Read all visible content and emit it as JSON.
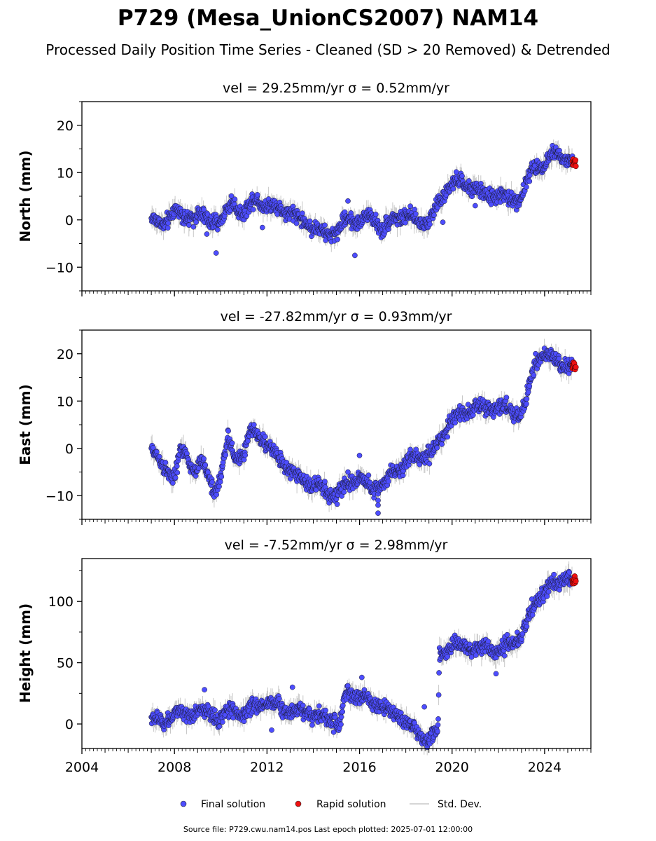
{
  "title": "P729 (Mesa_UnionCS2007) NAM14",
  "subtitle": "Processed Daily Position Time Series - Cleaned (SD > 20 Removed) & Detrended",
  "source_note": "Source file: P729.cwu.nam14.pos  Last epoch plotted: 2025-07-01 12:00:00",
  "legend": {
    "final": "Final solution",
    "rapid": "Rapid solution",
    "std": "Std. Dev."
  },
  "colors": {
    "final": "#4d4dff",
    "rapid": "#ee1111",
    "std": "#b5b5b5"
  },
  "chart_data": [
    {
      "type": "scatter",
      "title": "vel = 29.25mm/yr   σ = 0.52mm/yr",
      "ylabel": "North (mm)",
      "xlim": [
        2004,
        2026
      ],
      "ylim": [
        -15,
        25
      ],
      "xticks": [
        2004,
        2008,
        2012,
        2016,
        2020,
        2024
      ],
      "yticks": [
        -10,
        0,
        10,
        20
      ],
      "final_start": 2007.0,
      "final_end": 2025.2,
      "rapid_start": 2025.2,
      "rapid_end": 2025.5,
      "trend": [
        [
          2007.0,
          0.5
        ],
        [
          2007.5,
          -1.5
        ],
        [
          2008.0,
          2.5
        ],
        [
          2008.5,
          0.0
        ],
        [
          2009.0,
          1.5
        ],
        [
          2009.5,
          -0.5
        ],
        [
          2010.0,
          0.0
        ],
        [
          2010.5,
          3.5
        ],
        [
          2011.0,
          1.5
        ],
        [
          2011.5,
          4.5
        ],
        [
          2012.0,
          3.0
        ],
        [
          2012.5,
          2.5
        ],
        [
          2013.0,
          1.5
        ],
        [
          2013.5,
          0.0
        ],
        [
          2014.0,
          -1.5
        ],
        [
          2014.5,
          -3.0
        ],
        [
          2015.0,
          -2.5
        ],
        [
          2015.5,
          0.5
        ],
        [
          2016.0,
          -0.5
        ],
        [
          2016.5,
          1.0
        ],
        [
          2017.0,
          -2.0
        ],
        [
          2017.5,
          0.5
        ],
        [
          2018.0,
          1.0
        ],
        [
          2018.5,
          -0.5
        ],
        [
          2019.0,
          0.0
        ],
        [
          2019.5,
          4.0
        ],
        [
          2020.0,
          8.0
        ],
        [
          2020.5,
          7.5
        ],
        [
          2021.0,
          6.5
        ],
        [
          2021.5,
          5.0
        ],
        [
          2022.0,
          5.5
        ],
        [
          2022.5,
          4.0
        ],
        [
          2023.0,
          5.0
        ],
        [
          2023.5,
          11.0
        ],
        [
          2024.0,
          12.0
        ],
        [
          2024.5,
          14.5
        ],
        [
          2025.0,
          12.5
        ],
        [
          2025.5,
          12.0
        ]
      ],
      "outliers": [
        [
          2009.8,
          -7.0
        ],
        [
          2015.8,
          -7.5
        ],
        [
          2011.8,
          -1.6
        ],
        [
          2019.6,
          -0.5
        ],
        [
          2021.0,
          3.0
        ],
        [
          2009.4,
          -3.0
        ],
        [
          2015.5,
          4.0
        ]
      ]
    },
    {
      "type": "scatter",
      "title": "vel = -27.82mm/yr   σ = 0.93mm/yr",
      "ylabel": "East (mm)",
      "xlim": [
        2004,
        2026
      ],
      "ylim": [
        -15,
        25
      ],
      "xticks": [
        2004,
        2008,
        2012,
        2016,
        2020,
        2024
      ],
      "yticks": [
        -10,
        0,
        10,
        20
      ],
      "final_start": 2007.0,
      "final_end": 2025.2,
      "rapid_start": 2025.2,
      "rapid_end": 2025.5,
      "trend": [
        [
          2007.0,
          0.0
        ],
        [
          2007.5,
          -4.0
        ],
        [
          2008.0,
          -6.0
        ],
        [
          2008.3,
          0.0
        ],
        [
          2008.8,
          -4.5
        ],
        [
          2009.2,
          -3.0
        ],
        [
          2009.7,
          -9.0
        ],
        [
          2010.0,
          -6.0
        ],
        [
          2010.3,
          2.0
        ],
        [
          2010.6,
          -2.0
        ],
        [
          2011.0,
          -1.0
        ],
        [
          2011.3,
          4.0
        ],
        [
          2011.8,
          2.0
        ],
        [
          2012.2,
          -0.5
        ],
        [
          2012.6,
          -2.5
        ],
        [
          2013.0,
          -5.0
        ],
        [
          2013.5,
          -6.5
        ],
        [
          2014.0,
          -7.5
        ],
        [
          2014.5,
          -9.0
        ],
        [
          2015.0,
          -10.0
        ],
        [
          2015.5,
          -7.5
        ],
        [
          2016.0,
          -6.0
        ],
        [
          2016.5,
          -8.5
        ],
        [
          2017.0,
          -7.5
        ],
        [
          2017.5,
          -5.0
        ],
        [
          2018.0,
          -3.0
        ],
        [
          2018.5,
          -2.0
        ],
        [
          2019.0,
          -1.0
        ],
        [
          2019.5,
          1.5
        ],
        [
          2020.0,
          6.5
        ],
        [
          2020.5,
          7.5
        ],
        [
          2021.0,
          9.0
        ],
        [
          2021.5,
          8.0
        ],
        [
          2022.0,
          9.0
        ],
        [
          2022.5,
          8.0
        ],
        [
          2023.0,
          7.5
        ],
        [
          2023.3,
          12.0
        ],
        [
          2023.6,
          18.0
        ],
        [
          2024.0,
          20.0
        ],
        [
          2024.5,
          18.5
        ],
        [
          2025.0,
          17.5
        ],
        [
          2025.5,
          17.0
        ]
      ],
      "outliers": [
        [
          2016.0,
          -1.5
        ],
        [
          2016.8,
          -11.0
        ],
        [
          2016.8,
          -12.0
        ],
        [
          2016.8,
          -13.7
        ],
        [
          2015.5,
          -5.0
        ]
      ]
    },
    {
      "type": "scatter",
      "title": "vel = -7.52mm/yr   σ = 2.98mm/yr",
      "ylabel": "Height (mm)",
      "xlim": [
        2004,
        2026
      ],
      "ylim": [
        -20,
        135
      ],
      "xticks": [
        2004,
        2008,
        2012,
        2016,
        2020,
        2024
      ],
      "yticks": [
        0,
        50,
        100
      ],
      "final_start": 2007.0,
      "final_end": 2025.2,
      "rapid_start": 2025.2,
      "rapid_end": 2025.5,
      "trend": [
        [
          2007.0,
          5.0
        ],
        [
          2007.5,
          0.0
        ],
        [
          2008.0,
          10.0
        ],
        [
          2008.5,
          5.0
        ],
        [
          2009.0,
          12.0
        ],
        [
          2009.5,
          8.0
        ],
        [
          2010.0,
          5.0
        ],
        [
          2010.5,
          12.0
        ],
        [
          2011.0,
          8.0
        ],
        [
          2011.5,
          15.0
        ],
        [
          2012.0,
          18.0
        ],
        [
          2012.5,
          15.0
        ],
        [
          2013.0,
          10.0
        ],
        [
          2013.5,
          12.0
        ],
        [
          2014.0,
          8.0
        ],
        [
          2014.5,
          5.0
        ],
        [
          2015.0,
          3.0
        ],
        [
          2015.1,
          -5.0
        ],
        [
          2015.4,
          25.0
        ],
        [
          2016.0,
          22.0
        ],
        [
          2016.5,
          18.0
        ],
        [
          2017.0,
          15.0
        ],
        [
          2017.5,
          8.0
        ],
        [
          2018.0,
          3.0
        ],
        [
          2018.5,
          -8.0
        ],
        [
          2019.0,
          -12.0
        ],
        [
          2019.4,
          -5.0
        ],
        [
          2019.45,
          55.0
        ],
        [
          2020.0,
          65.0
        ],
        [
          2020.5,
          62.0
        ],
        [
          2021.0,
          60.0
        ],
        [
          2021.5,
          63.0
        ],
        [
          2022.0,
          58.0
        ],
        [
          2022.5,
          65.0
        ],
        [
          2023.0,
          72.0
        ],
        [
          2023.5,
          95.0
        ],
        [
          2024.0,
          110.0
        ],
        [
          2024.5,
          115.0
        ],
        [
          2025.0,
          120.0
        ],
        [
          2025.5,
          115.0
        ]
      ],
      "outliers": [
        [
          2009.3,
          28.0
        ],
        [
          2013.1,
          30.0
        ],
        [
          2016.1,
          38.0
        ],
        [
          2021.9,
          41.0
        ],
        [
          2018.8,
          14.0
        ],
        [
          2012.2,
          -5.0
        ]
      ]
    }
  ]
}
